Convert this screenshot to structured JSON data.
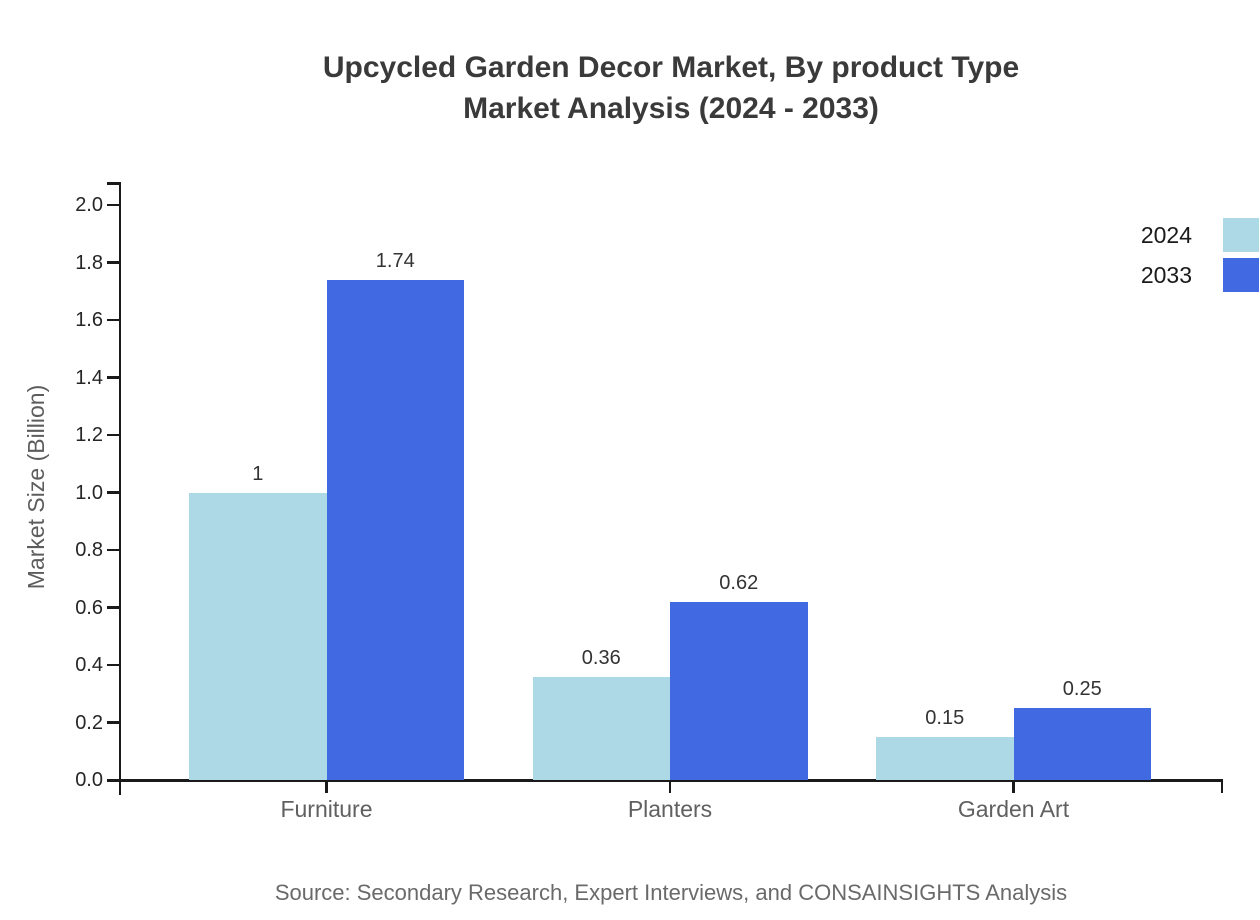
{
  "title": {
    "line1": "Upcycled Garden Decor Market, By product Type",
    "line2": "Market Analysis (2024 - 2033)"
  },
  "source_note": "Source: Secondary Research, Expert Interviews, and CONSAINSIGHTS Analysis",
  "chart_data": {
    "type": "bar",
    "title": "Upcycled Garden Decor Market, By product Type Market Analysis (2024 - 2033)",
    "categories": [
      "Furniture",
      "Planters",
      "Garden Art"
    ],
    "series": [
      {
        "name": "2024",
        "color": "#add8e6",
        "values": [
          1,
          0.36,
          0.15
        ],
        "labels": [
          "1",
          "0.36",
          "0.15"
        ]
      },
      {
        "name": "2033",
        "color": "#4169e1",
        "values": [
          1.74,
          0.62,
          0.25
        ],
        "labels": [
          "1.74",
          "0.62",
          "0.25"
        ]
      }
    ],
    "xlabel": "",
    "ylabel": "Market Size (Billion)",
    "ylim": [
      0.0,
      2.0
    ],
    "ytick_step": 0.2,
    "yticks": [
      "0.0",
      "0.2",
      "0.4",
      "0.6",
      "0.8",
      "1.0",
      "1.2",
      "1.4",
      "1.6",
      "1.8",
      "2.0"
    ],
    "grid": false,
    "legend_position": "top-right-outside",
    "axis_color": "#1a1a1a",
    "value_label_color": "#333333"
  }
}
